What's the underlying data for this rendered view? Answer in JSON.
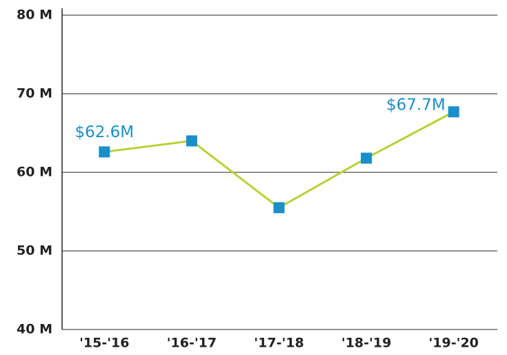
{
  "chart_data": {
    "type": "line",
    "categories": [
      "'15-'16",
      "'16-'17",
      "'17-'18",
      "'18-'19",
      "'19-'20"
    ],
    "values": [
      62.6,
      64.0,
      55.5,
      61.8,
      67.7
    ],
    "value_labels": [
      "$62.6M",
      null,
      null,
      null,
      "$67.7M"
    ],
    "color": "#b5d334",
    "marker_color": "#1a8fc9",
    "ylim": [
      40,
      80
    ],
    "yticks": [
      {
        "value": 40,
        "label": "40 M"
      },
      {
        "value": 50,
        "label": "50 M"
      },
      {
        "value": 60,
        "label": "60 M"
      },
      {
        "value": 70,
        "label": "70 M"
      },
      {
        "value": 80,
        "label": "80 M"
      }
    ],
    "grid": true
  }
}
